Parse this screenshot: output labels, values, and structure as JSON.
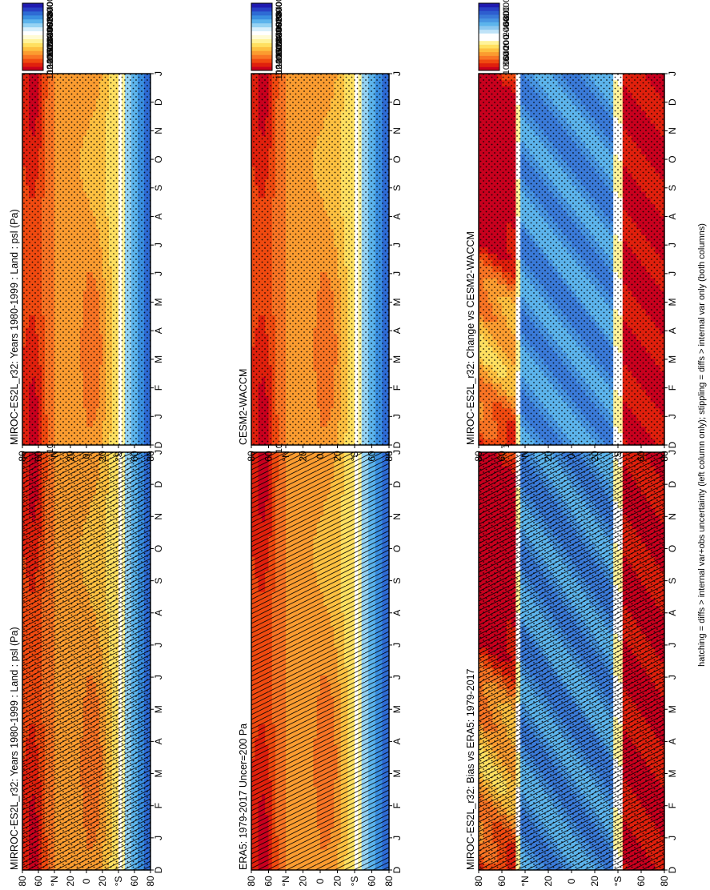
{
  "footer": "hatching = diffs > internal var+obs uncertainty (left column only); stippling = diffs > internal var only (both columns)",
  "colors": {
    "abs": [
      "#c8001e",
      "#e0200d",
      "#f04a10",
      "#f87424",
      "#fb9c30",
      "#fdc040",
      "#ffe060",
      "#fff39a",
      "#fffbd5",
      "#ffffff",
      "#d7effb",
      "#95d3f3",
      "#5cb4ec",
      "#3a8fe0",
      "#2e6bd4",
      "#2840c4",
      "#1f1ab0"
    ],
    "diff": [
      "#c8001e",
      "#e0200d",
      "#f04a10",
      "#f87424",
      "#fb9c30",
      "#fdc040",
      "#ffe060",
      "#fff39a",
      "#ffffff",
      "#ffffff",
      "#bfe3f8",
      "#8cc8f0",
      "#5cb4ec",
      "#4895e2",
      "#3a7ad8",
      "#2e5ecf",
      "#2840c4",
      "#1f1ab0"
    ]
  },
  "chart_data": [
    {
      "type": "heatmap",
      "id": "panel-1",
      "title": "MIRROC-ES2L_r32: Years 1980-1999 : Land : psl (Pa)",
      "months": [
        "D",
        "J",
        "F",
        "M",
        "A",
        "M",
        "J",
        "J",
        "A",
        "S",
        "O",
        "N",
        "D",
        "J"
      ],
      "lat_ticks": [
        "80",
        "60",
        "°N",
        "20",
        "0",
        "20",
        "°S",
        "60",
        "80"
      ],
      "colorbar_labels": [
        "102400",
        "102000",
        "101600",
        "101200",
        "100800",
        "100400",
        "100000",
        "99600",
        "99200",
        "98800",
        "98400"
      ],
      "hatching": true,
      "stippling": true
    },
    {
      "type": "heatmap",
      "id": "panel-2",
      "title": "MIROC-ES2L_r32: Years 1980-1999 : Land : psl (Pa)",
      "months": [
        "D",
        "J",
        "F",
        "M",
        "A",
        "M",
        "J",
        "J",
        "A",
        "S",
        "O",
        "N",
        "D",
        "J"
      ],
      "lat_ticks": [
        "80",
        "60",
        "°N",
        "20",
        "0",
        "20",
        "°S",
        "60",
        "80"
      ],
      "colorbar_labels": [
        "102400",
        "102000",
        "101600",
        "101200",
        "100800",
        "100400",
        "100000",
        "99600",
        "99200",
        "98800",
        "98400"
      ],
      "hatching": false,
      "stippling": true
    },
    {
      "type": "heatmap",
      "id": "panel-3",
      "title": "ERA5: 1979-2017 Uncer=200 Pa",
      "months": [
        "D",
        "J",
        "F",
        "M",
        "A",
        "M",
        "J",
        "J",
        "A",
        "S",
        "O",
        "N",
        "D",
        "J"
      ],
      "lat_ticks": [
        "80",
        "60",
        "°N",
        "20",
        "0",
        "20",
        "°S",
        "60",
        "80"
      ],
      "colorbar_labels": [
        "102400",
        "102000",
        "101600",
        "101200",
        "100800",
        "100400",
        "100000",
        "99600",
        "99200",
        "98800",
        "98400"
      ],
      "hatching": true,
      "stippling": false
    },
    {
      "type": "heatmap",
      "id": "panel-4",
      "title": "CESM2-WACCM",
      "months": [
        "D",
        "J",
        "F",
        "M",
        "A",
        "M",
        "J",
        "J",
        "A",
        "S",
        "O",
        "N",
        "D",
        "J"
      ],
      "lat_ticks": [
        "80",
        "60",
        "°N",
        "20",
        "0",
        "20",
        "°S",
        "60",
        "80"
      ],
      "colorbar_labels": [
        "102400",
        "102000",
        "101600",
        "101200",
        "100800",
        "100400",
        "100000",
        "99600",
        "99200",
        "98800",
        "98400"
      ],
      "hatching": false,
      "stippling": true
    },
    {
      "type": "heatmap",
      "id": "panel-5",
      "title": "MIROC-ES2L_r32: Bias vs ERA5: 1979-2017",
      "months": [
        "D",
        "J",
        "F",
        "M",
        "A",
        "M",
        "J",
        "J",
        "A",
        "S",
        "O",
        "N",
        "D",
        "J"
      ],
      "lat_ticks": [
        "80",
        "60",
        "°N",
        "20",
        "0",
        "20",
        "°S",
        "60",
        "80"
      ],
      "colorbar_labels": [
        "1000",
        "800",
        "600",
        "400",
        "200",
        "0",
        "-200",
        "-400",
        "-600",
        "-800",
        "-1000"
      ],
      "hatching": true,
      "stippling": true
    },
    {
      "type": "heatmap",
      "id": "panel-6",
      "title": "MIROC-ES2L_r32: Change vs CESM2-WACCM",
      "months": [
        "D",
        "J",
        "F",
        "M",
        "A",
        "M",
        "J",
        "J",
        "A",
        "S",
        "O",
        "N",
        "D",
        "J"
      ],
      "lat_ticks": [
        "80",
        "60",
        "°N",
        "20",
        "0",
        "20",
        "°S",
        "60",
        "80"
      ],
      "colorbar_labels": [
        "1000",
        "800",
        "600",
        "400",
        "200",
        "0",
        "-200",
        "-400",
        "-600",
        "-800",
        "-1000"
      ],
      "hatching": false,
      "stippling": true
    }
  ]
}
